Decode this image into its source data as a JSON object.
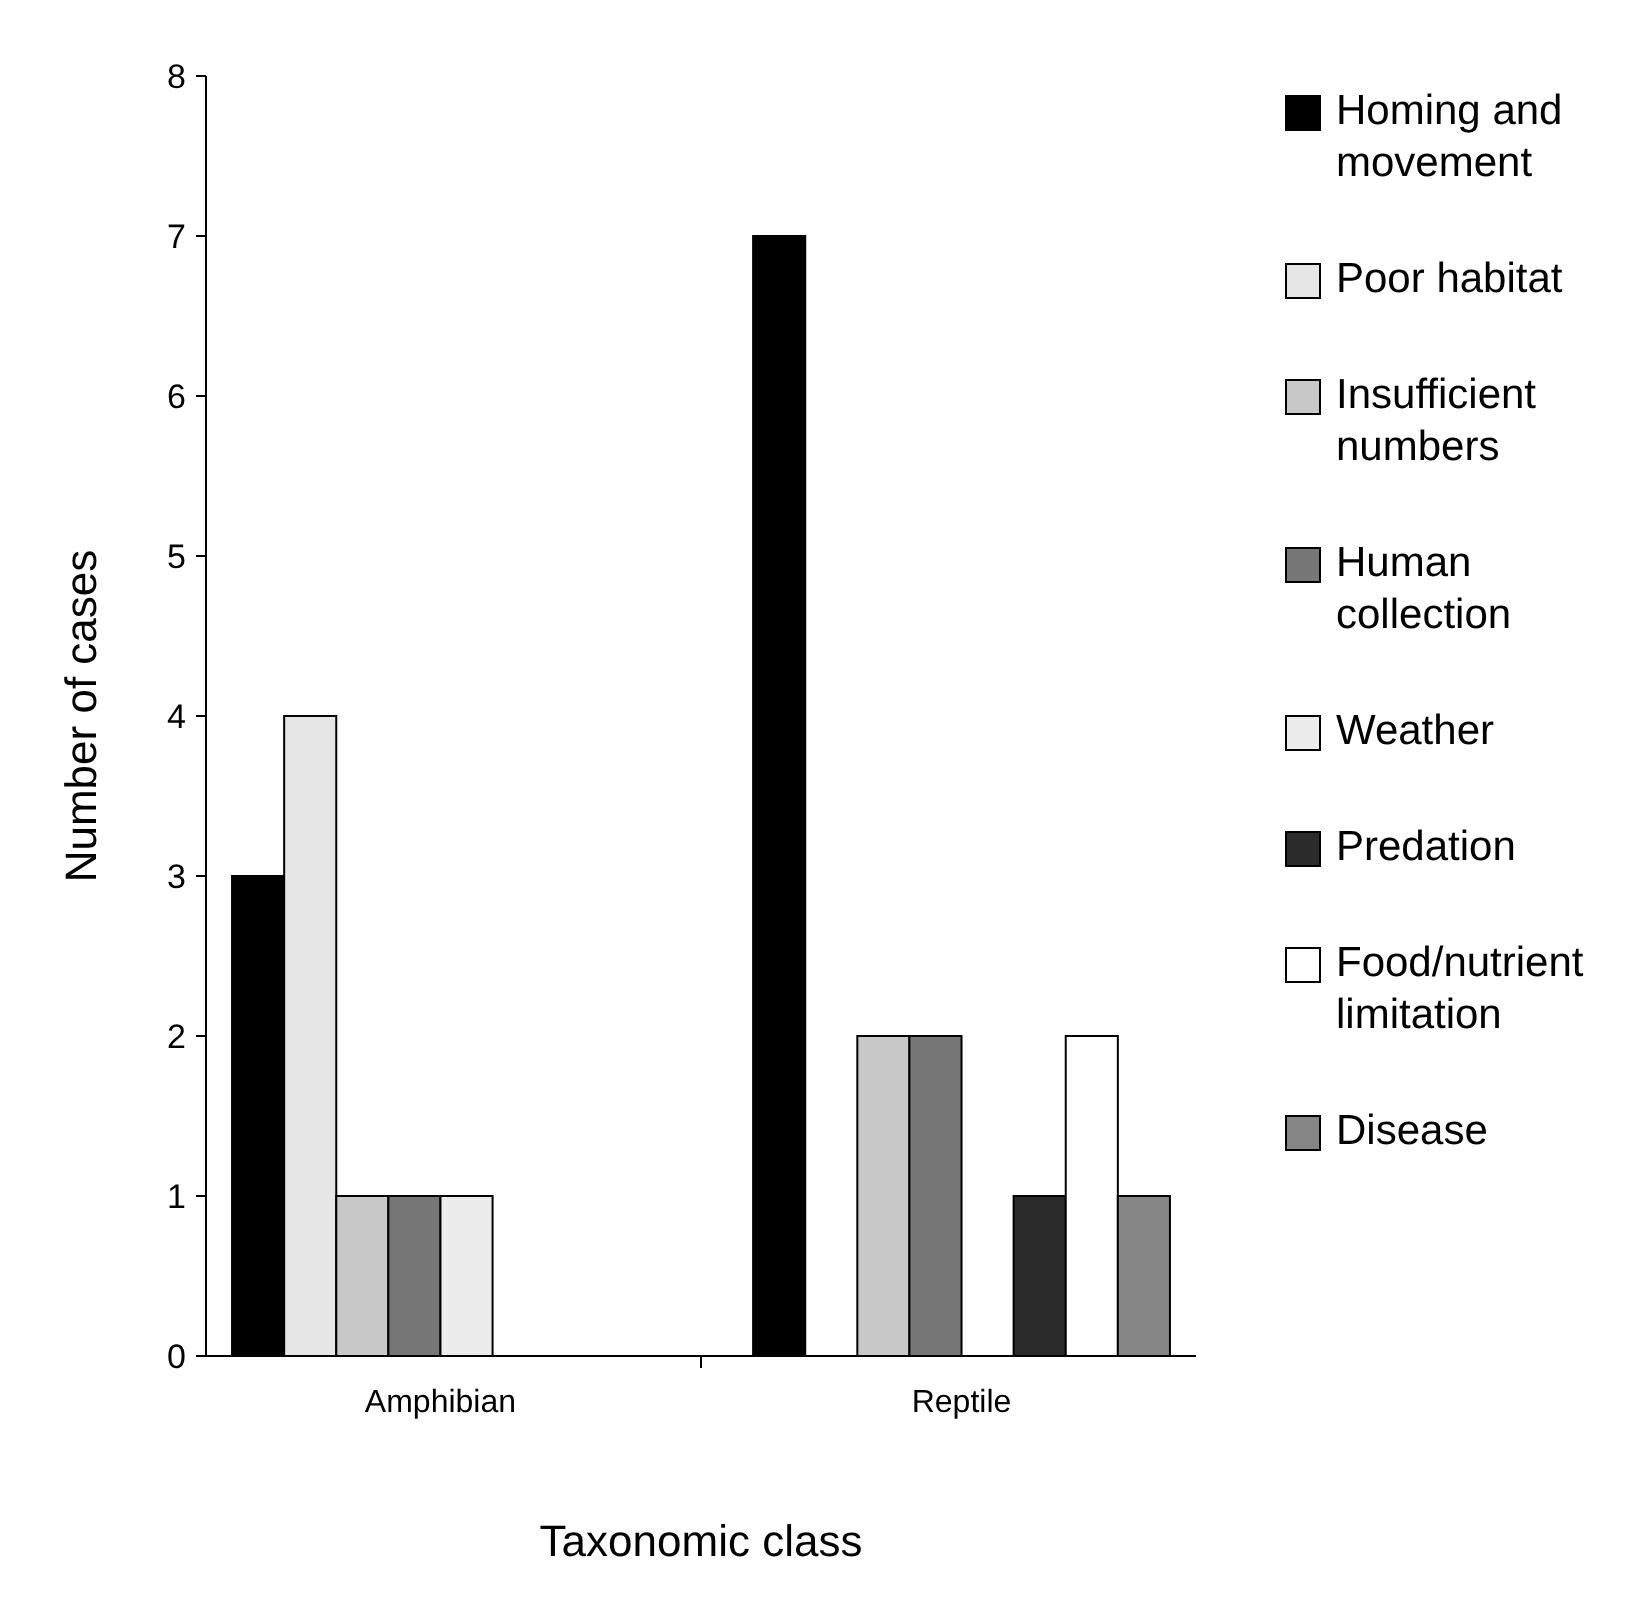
{
  "chart_data": {
    "type": "bar",
    "xlabel": "Taxonomic class",
    "ylabel": "Number of cases",
    "categories": [
      "Amphibian",
      "Reptile"
    ],
    "series": [
      {
        "name": "Homing and movement",
        "color": "#000000",
        "values": [
          3,
          7
        ]
      },
      {
        "name": "Poor habitat",
        "color": "#e6e6e6",
        "values": [
          4,
          0
        ]
      },
      {
        "name": "Insufficient numbers",
        "color": "#c8c8c8",
        "values": [
          1,
          2
        ]
      },
      {
        "name": "Human collection",
        "color": "#777777",
        "values": [
          1,
          2
        ]
      },
      {
        "name": "Weather",
        "color": "#ececec",
        "values": [
          1,
          0
        ]
      },
      {
        "name": "Predation",
        "color": "#2b2b2b",
        "values": [
          0,
          1
        ]
      },
      {
        "name": "Food/nutrient limitation",
        "color": "#ffffff",
        "values": [
          0,
          2
        ]
      },
      {
        "name": "Disease",
        "color": "#858585",
        "values": [
          0,
          1
        ]
      }
    ],
    "ylim": [
      0,
      8
    ],
    "yticks": [
      0,
      1,
      2,
      3,
      4,
      5,
      6,
      7,
      8
    ],
    "legend": "right"
  }
}
